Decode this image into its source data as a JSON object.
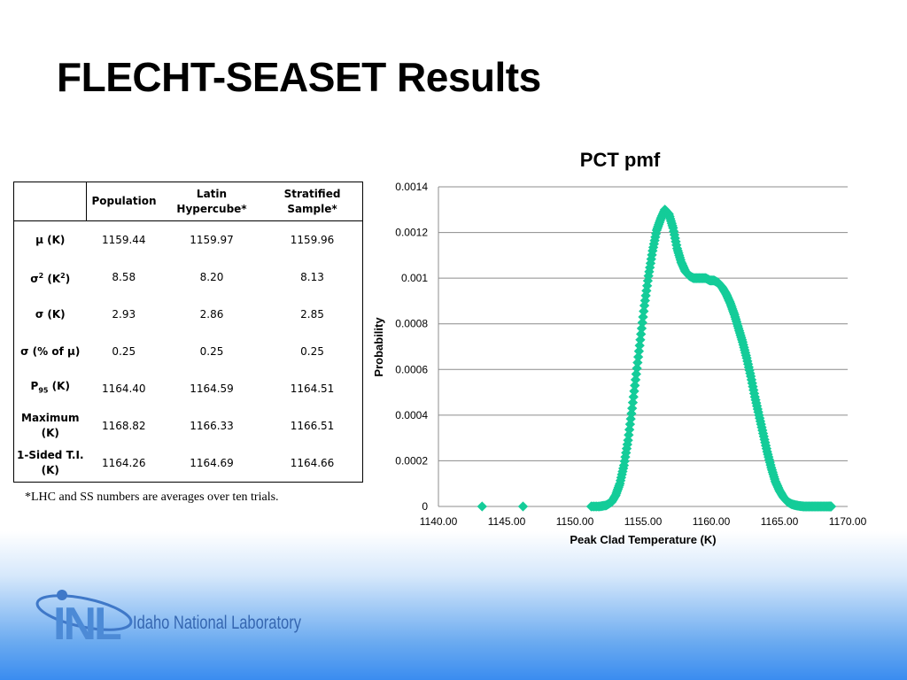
{
  "slide": {
    "title": "FLECHT-SEASET Results",
    "footnote": "*LHC and SS numbers are averages over ten trials."
  },
  "table": {
    "headers": [
      "",
      "Population",
      "Latin Hypercube*",
      "Stratified Sample*"
    ],
    "rows": [
      {
        "label": "μ (K)",
        "values": [
          "1159.44",
          "1159.97",
          "1159.96"
        ]
      },
      {
        "label": "σ2 (K2)",
        "values": [
          "8.58",
          "8.20",
          "8.13"
        ]
      },
      {
        "label": "σ (K)",
        "values": [
          "2.93",
          "2.86",
          "2.85"
        ]
      },
      {
        "label": "σ (% of μ)",
        "values": [
          "0.25",
          "0.25",
          "0.25"
        ]
      },
      {
        "label": "P95 (K)",
        "values": [
          "1164.40",
          "1164.59",
          "1164.51"
        ]
      },
      {
        "label": "Maximum (K)",
        "values": [
          "1168.82",
          "1166.33",
          "1166.51"
        ]
      },
      {
        "label": "1-Sided T.I. (K)",
        "values": [
          "1164.26",
          "1164.69",
          "1164.66"
        ]
      }
    ]
  },
  "chart_data": {
    "type": "scatter",
    "title": "PCT pmf",
    "xlabel": "Peak Clad Temperature (K)",
    "ylabel": "Probability",
    "xlim": [
      1140,
      1170
    ],
    "ylim": [
      0,
      0.0014
    ],
    "xticks": [
      "1140.00",
      "1145.00",
      "1150.00",
      "1155.00",
      "1160.00",
      "1165.00",
      "1170.00"
    ],
    "yticks": [
      "0",
      "0.0002",
      "0.0004",
      "0.0006",
      "0.0008",
      "0.001",
      "0.0012",
      "0.0014"
    ],
    "grid": "horizontal",
    "legend": "none",
    "marker_color": "#14cc99",
    "series": [
      {
        "x": [
          1143.2,
          1146.2,
          1151.2,
          1151.8,
          1152.3,
          1152.7,
          1153.0,
          1153.3,
          1153.6,
          1153.9,
          1154.2,
          1154.5,
          1154.8,
          1155.1,
          1155.4,
          1155.7,
          1156.0,
          1156.3,
          1156.6,
          1156.9,
          1157.2,
          1157.5,
          1157.8,
          1158.1,
          1158.4,
          1158.7,
          1159.0,
          1159.3,
          1159.6,
          1159.9,
          1160.2,
          1160.5,
          1160.8,
          1161.1,
          1161.4,
          1161.7,
          1162.0,
          1162.3,
          1162.6,
          1162.9,
          1163.2,
          1163.5,
          1163.8,
          1164.1,
          1164.4,
          1164.7,
          1165.0,
          1165.3,
          1165.6,
          1165.9,
          1166.2,
          1166.5,
          1166.8,
          1167.1,
          1167.4,
          1167.7,
          1168.0,
          1168.3,
          1168.6,
          1168.8
        ],
        "y": [
          0.0,
          0.0,
          0.0,
          0.0,
          5e-06,
          2e-05,
          5e-05,
          0.0001,
          0.00018,
          0.00029,
          0.00043,
          0.00058,
          0.00073,
          0.00088,
          0.00101,
          0.00112,
          0.00121,
          0.00126,
          0.0013,
          0.00128,
          0.00122,
          0.00113,
          0.00107,
          0.00103,
          0.00101,
          0.001,
          0.001,
          0.001,
          0.001,
          0.00099,
          0.00099,
          0.00098,
          0.00096,
          0.00093,
          0.00089,
          0.00084,
          0.00078,
          0.00072,
          0.00065,
          0.00057,
          0.00048,
          0.0004,
          0.00032,
          0.00024,
          0.00017,
          0.00011,
          7e-05,
          4e-05,
          2e-05,
          1e-05,
          5e-06,
          2e-06,
          0.0,
          0.0,
          0.0,
          0.0,
          0.0,
          0.0,
          0.0,
          0.0
        ]
      }
    ]
  },
  "logo": {
    "mark": "INL",
    "text": "Idaho National Laboratory"
  }
}
